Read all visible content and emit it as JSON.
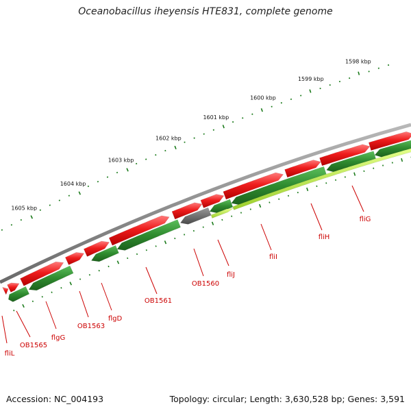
{
  "title": "Oceanobacillus iheyensis HTE831, complete genome",
  "footer": {
    "accession": "Accession: NC_004193",
    "topology": "Topology: circular; Length: 3,630,528 bp; Genes: 3,591"
  },
  "scale_labels": [
    "1598 kbp",
    "1599 kbp",
    "1600 kbp",
    "1601 kbp",
    "1602 kbp",
    "1603 kbp",
    "1604 kbp",
    "1605 kbp"
  ],
  "gene_labels": [
    "fliG",
    "fliH",
    "fliI",
    "fliJ",
    "OB1560",
    "OB1561",
    "flgD",
    "OB1563",
    "flgG",
    "OB1565",
    "fliL"
  ],
  "colors": {
    "backbone": "#8a8a8a",
    "forward_gene": "#e8141a",
    "reverse_gene": "#2f8b2f",
    "highlight_gene": "#b8e83c",
    "other_gene": "#6b6b6b",
    "tick": "#1a7a1a",
    "gene_label": "#cc0000"
  }
}
